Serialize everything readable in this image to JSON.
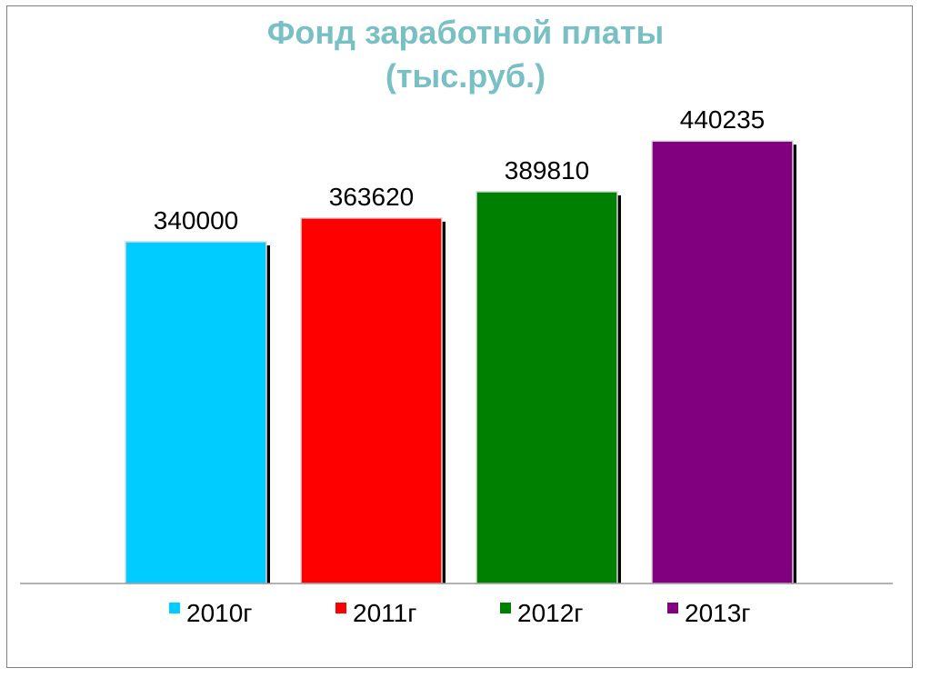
{
  "chart_data": {
    "type": "bar",
    "title": "Фонд заработной платы",
    "subtitle": "(тыс.руб.)",
    "categories": [
      "2010г",
      "2011г",
      "2012г",
      "2013г"
    ],
    "values": [
      340000,
      363620,
      389810,
      440235
    ],
    "data_labels": [
      "340000",
      "363620",
      "389810",
      "440235"
    ],
    "colors": [
      "#00ccff",
      "#ff0000",
      "#008000",
      "#800080"
    ],
    "ylim": [
      0,
      480000
    ],
    "grid": false,
    "legend": "bottom",
    "xlabel": "",
    "ylabel": ""
  }
}
